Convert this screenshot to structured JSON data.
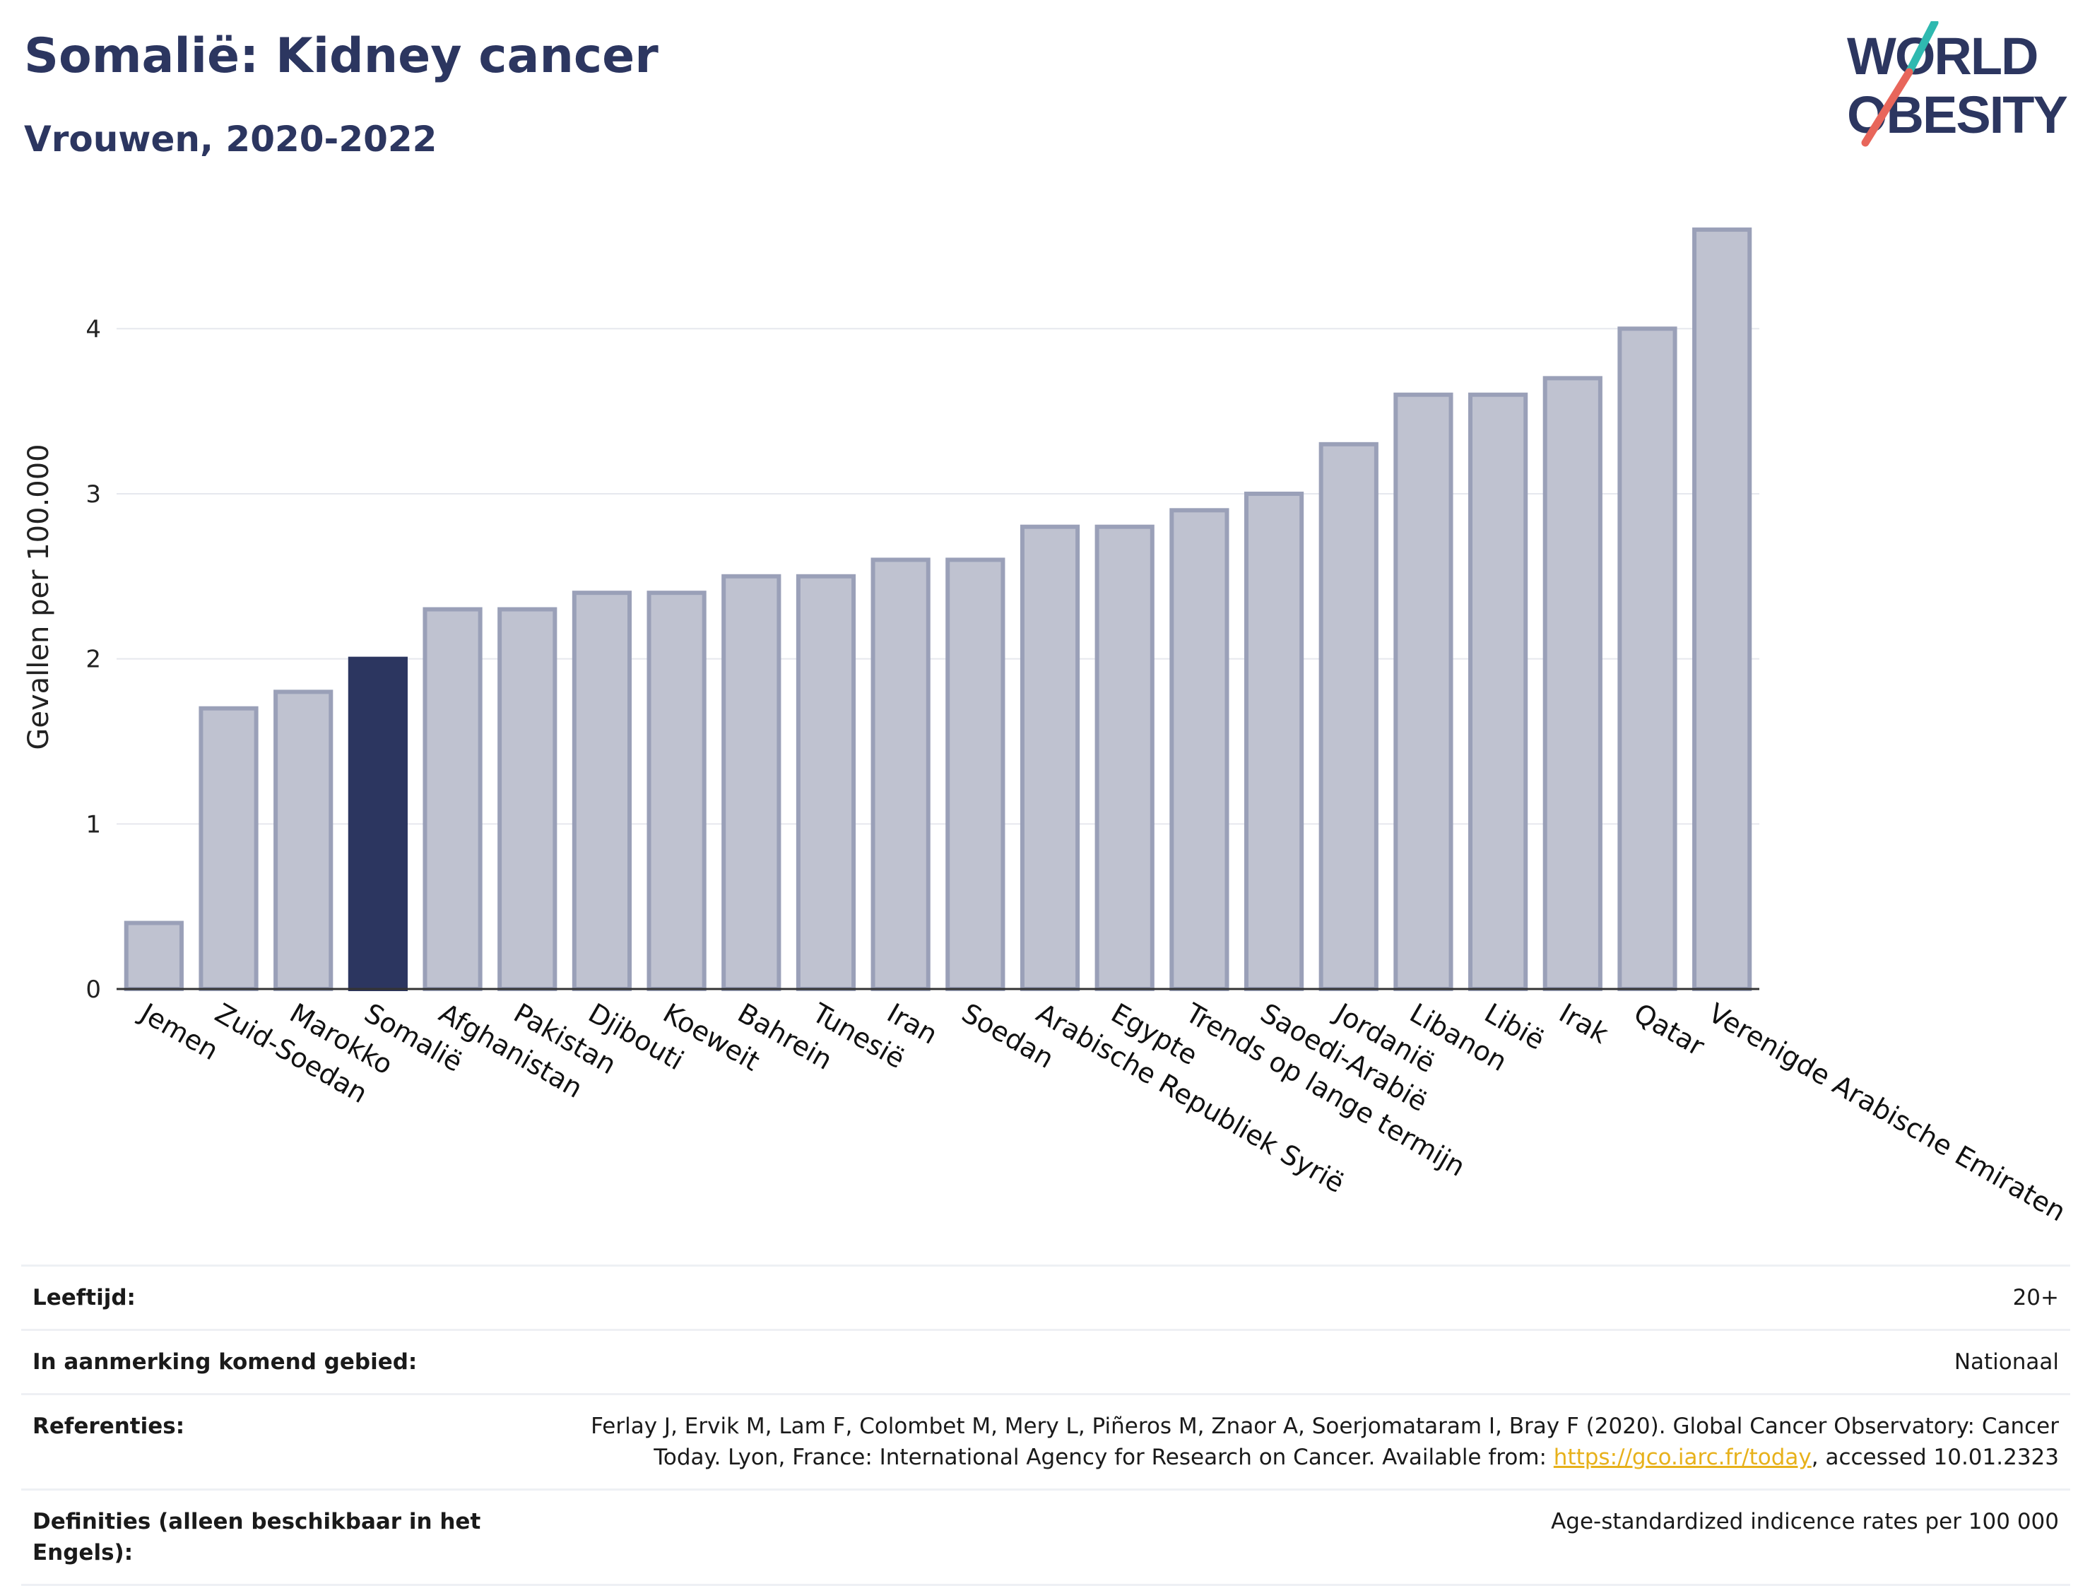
{
  "header": {
    "title": "Somalië: Kidney cancer",
    "subtitle": "Vrouwen, 2020-2022"
  },
  "logo": {
    "line1": "WORLD",
    "line2": "OBESITY",
    "colors": {
      "text": "#2c3660",
      "slash_top": "#2fb9b0",
      "slash_bottom": "#e8665b"
    }
  },
  "colors": {
    "bar": "#bfc2d0",
    "bar_border": "#9aa0b8",
    "bar_highlight": "#2c3660",
    "grid": "#e6e8ee",
    "axis": "#333333"
  },
  "chart_data": {
    "type": "bar",
    "ylabel": "Gevallen per 100.000",
    "ylim": [
      0,
      4.75
    ],
    "yticks": [
      0,
      1,
      2,
      3,
      4
    ],
    "grid": true,
    "highlight": "Somalië",
    "categories": [
      "Jemen",
      "Zuid-Soedan",
      "Marokko",
      "Somalië",
      "Afghanistan",
      "Pakistan",
      "Djibouti",
      "Koeweit",
      "Bahrein",
      "Tunesië",
      "Iran",
      "Soedan",
      "Arabische Republiek Syrië",
      "Egypte",
      "Trends op lange termijn",
      "Saoedi-Arabië",
      "Jordanië",
      "Libanon",
      "Libië",
      "Irak",
      "Qatar",
      "Verenigde Arabische Emiraten"
    ],
    "values": [
      0.4,
      1.7,
      1.8,
      2.0,
      2.3,
      2.3,
      2.4,
      2.4,
      2.5,
      2.5,
      2.6,
      2.6,
      2.8,
      2.8,
      2.9,
      3.0,
      3.3,
      3.6,
      3.6,
      3.7,
      4.0,
      4.6
    ]
  },
  "info_table": {
    "age_label": "Leeftijd:",
    "age_value": "20+",
    "area_label": "In aanmerking komend gebied:",
    "area_value": "Nationaal",
    "ref_label": "Referenties:",
    "ref_text": "Ferlay J, Ervik M, Lam F, Colombet M, Mery L, Piñeros M, Znaor A, Soerjomataram I, Bray F (2020). Global Cancer Observatory: Cancer Today. Lyon, France: International Agency for Research on Cancer. Available from: ",
    "ref_link": "https://gco.iarc.fr/today",
    "ref_suffix": ", accessed 10.01.2323",
    "def_label": "Definities (alleen beschikbaar in het Engels):",
    "def_value": "Age-standardized indicence rates per 100 000"
  }
}
